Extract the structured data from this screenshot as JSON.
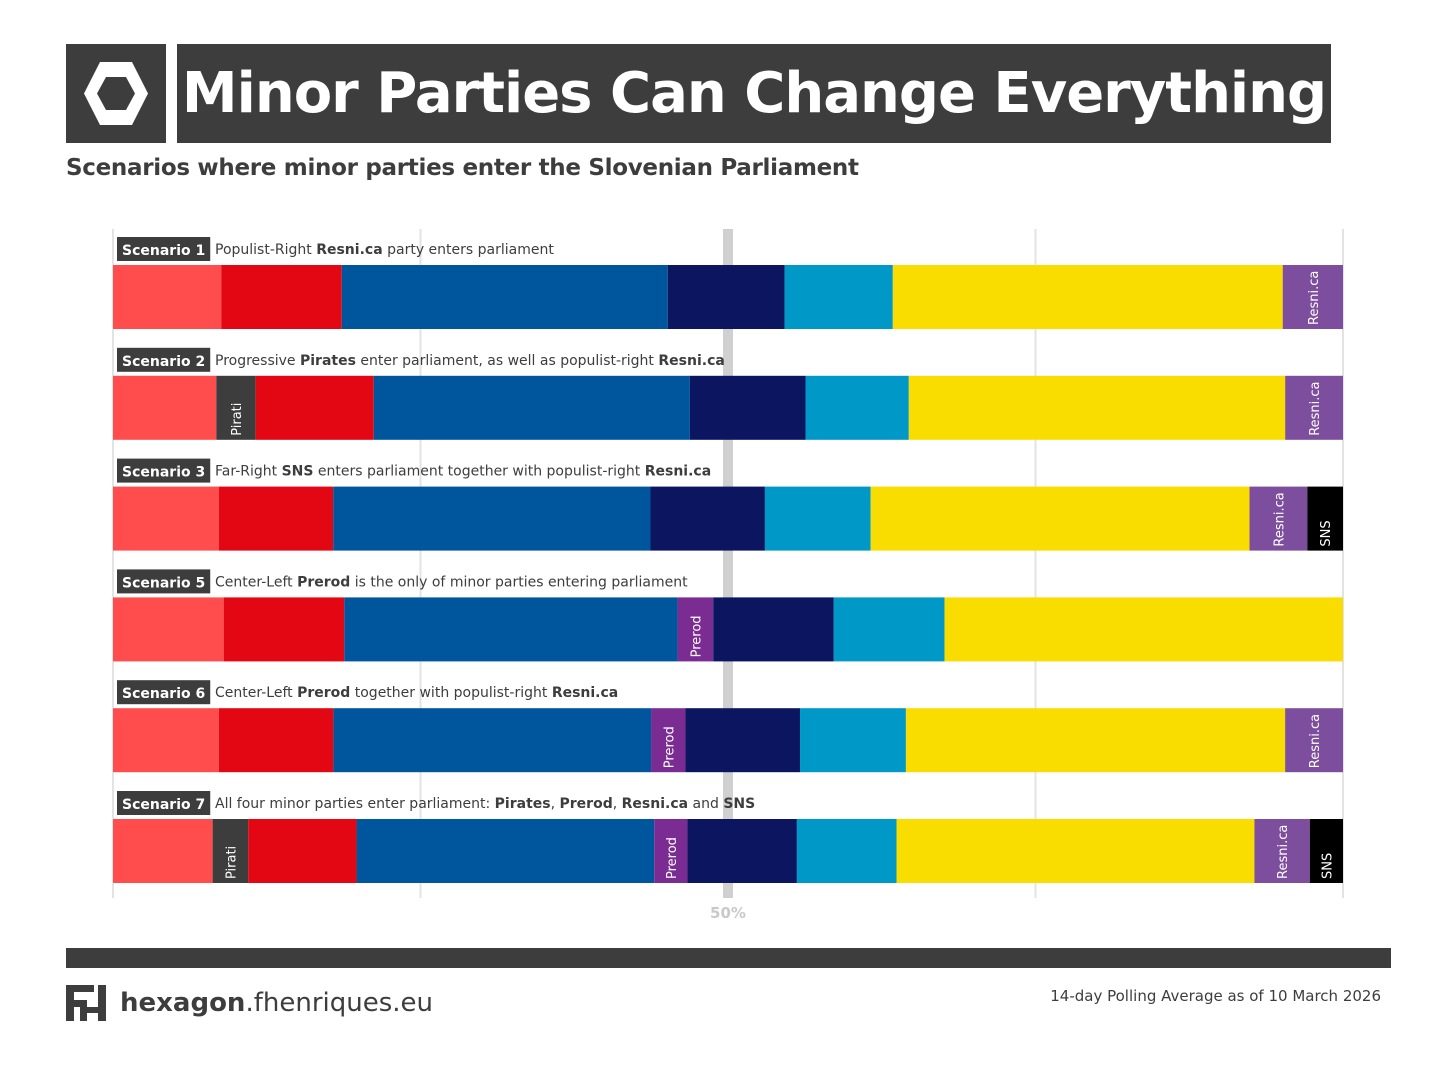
{
  "header": {
    "title": "Minor Parties Can Change Everything",
    "subtitle": "Scenarios where minor parties enter the Slovenian Parliament"
  },
  "footer": {
    "site_bold": "hexagon",
    "site_rest": ".fhenriques.eu",
    "note": "14-day Polling Average as of 10 March 2026"
  },
  "icons": {
    "header_logo": "hexagon-icon",
    "footer_logo": "fh-logo-icon"
  },
  "colors": {
    "header_bg": "#3d3d3d",
    "SD": "#ff4c4c",
    "Pirati": "#3d3d3d",
    "Levica": "#e30613",
    "SDS": "#00569c",
    "Prerod": "#7a2c92",
    "NSi": "#0b1560",
    "Demokrati": "#0098c6",
    "GS": "#fadd00",
    "Resni.ca": "#7d4e9d",
    "SNS": "#000000",
    "midline": "#d0d0d0"
  },
  "chart_data": {
    "type": "bar",
    "stacked": true,
    "orientation": "horizontal",
    "unit": "share of seats (%)",
    "xlim": [
      0,
      100
    ],
    "xtick_label": "50%",
    "xtick_value": 50,
    "grid": true,
    "series_order": [
      "SD",
      "Pirati",
      "Levica",
      "SDS",
      "Prerod",
      "NSi",
      "Demokrati",
      "GS",
      "Resni.ca",
      "SNS"
    ],
    "segment_labels": {
      "Pirati": "Pirati",
      "Prerod": "Prerod",
      "Resni.ca": "Resni.ca",
      "SNS": "SNS"
    },
    "scenarios": [
      {
        "badge": "Scenario 1",
        "description": [
          {
            "text": "Populist-Right ",
            "bold": false
          },
          {
            "text": "Resni.ca",
            "bold": true
          },
          {
            "text": " party enters parliament",
            "bold": false
          }
        ],
        "values": {
          "SD": 8.8,
          "Levica": 9.8,
          "SDS": 26.5,
          "NSi": 9.5,
          "Demokrati": 8.8,
          "GS": 31.7,
          "Resni.ca": 4.9
        }
      },
      {
        "badge": "Scenario 2",
        "description": [
          {
            "text": "Progressive ",
            "bold": false
          },
          {
            "text": "Pirates",
            "bold": true
          },
          {
            "text": " enter parliament, as well as populist-right ",
            "bold": false
          },
          {
            "text": "Resni.ca",
            "bold": true
          }
        ],
        "values": {
          "SD": 8.4,
          "Pirati": 3.2,
          "Levica": 9.6,
          "SDS": 25.7,
          "NSi": 9.4,
          "Demokrati": 8.4,
          "GS": 30.6,
          "Resni.ca": 4.7
        }
      },
      {
        "badge": "Scenario 3",
        "description": [
          {
            "text": "Far-Right ",
            "bold": false
          },
          {
            "text": "SNS",
            "bold": true
          },
          {
            "text": " enters parliament together with populist-right ",
            "bold": false
          },
          {
            "text": "Resni.ca",
            "bold": true
          }
        ],
        "values": {
          "SD": 8.6,
          "Levica": 9.3,
          "SDS": 25.8,
          "NSi": 9.3,
          "Demokrati": 8.6,
          "GS": 30.8,
          "Resni.ca": 4.7,
          "SNS": 2.9
        }
      },
      {
        "badge": "Scenario 5",
        "description": [
          {
            "text": "Center-Left ",
            "bold": false
          },
          {
            "text": "Prerod",
            "bold": true
          },
          {
            "text": " is the only of minor parties entering parliament",
            "bold": false
          }
        ],
        "values": {
          "SD": 9.0,
          "Levica": 9.8,
          "SDS": 27.1,
          "Prerod": 2.9,
          "NSi": 9.8,
          "Demokrati": 9.0,
          "GS": 32.4
        }
      },
      {
        "badge": "Scenario 6",
        "description": [
          {
            "text": "Center-Left ",
            "bold": false
          },
          {
            "text": "Prerod",
            "bold": true
          },
          {
            "text": " together with populist-right ",
            "bold": false
          },
          {
            "text": "Resni.ca",
            "bold": true
          }
        ],
        "values": {
          "SD": 8.6,
          "Levica": 9.3,
          "SDS": 25.8,
          "Prerod": 2.8,
          "NSi": 9.3,
          "Demokrati": 8.6,
          "GS": 30.8,
          "Resni.ca": 4.7
        }
      },
      {
        "badge": "Scenario 7",
        "description": [
          {
            "text": "All four minor parties enter parliament: ",
            "bold": false
          },
          {
            "text": "Pirates",
            "bold": true
          },
          {
            "text": ", ",
            "bold": false
          },
          {
            "text": "Prerod",
            "bold": true
          },
          {
            "text": ", ",
            "bold": false
          },
          {
            "text": "Resni.ca",
            "bold": true
          },
          {
            "text": " and ",
            "bold": false
          },
          {
            "text": "SNS",
            "bold": true
          }
        ],
        "values": {
          "SD": 8.1,
          "Pirati": 2.9,
          "Levica": 8.8,
          "SDS": 24.2,
          "Prerod": 2.7,
          "NSi": 8.9,
          "Demokrati": 8.1,
          "GS": 29.1,
          "Resni.ca": 4.5,
          "SNS": 2.7
        }
      }
    ]
  }
}
